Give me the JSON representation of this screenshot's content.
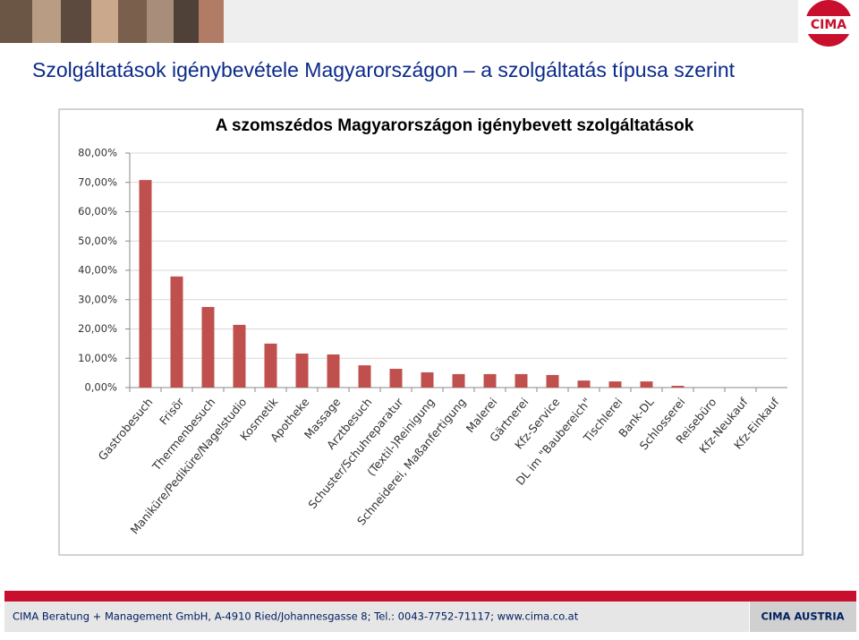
{
  "logo": "CIMA",
  "slide_title": "Szolgáltatások igénybevétele Magyarországon – a szolgáltatás típusa szerint",
  "footer": "CIMA Beratung + Management GmbH, A-4910 Ried/Johannesgasse 8; Tel.: 0043-7752-71117; www.cima.co.at",
  "footer_brand": "CIMA AUSTRIA",
  "chart_data": {
    "type": "bar",
    "title": "A szomszédos Magyarországon igénybevett szolgáltatások",
    "categories": [
      "Gastrobesuch",
      "Frisör",
      "Thermenbesuch",
      "Maniküre/Pediküre/Nagelstudio",
      "Kosmetik",
      "Apotheke",
      "Massage",
      "Arztbesuch",
      "Schuster/Schuhreparatur",
      "(Textil-)Reinigung",
      "Schneiderei, Maßanfertigung",
      "Malerei",
      "Gärtnerei",
      "Kfz-Service",
      "DL im \"Baubereich\"",
      "Tischlerei",
      "Bank-DL",
      "Schlosserei",
      "Reisebüro",
      "Kfz-Neukauf",
      "Kfz-Einkauf"
    ],
    "values": [
      70.8,
      37.9,
      27.5,
      21.4,
      15.0,
      11.6,
      11.3,
      7.6,
      6.4,
      5.2,
      4.6,
      4.6,
      4.6,
      4.3,
      2.4,
      2.1,
      2.1,
      0.6,
      0,
      0,
      0
    ],
    "color": "#c0504d",
    "ylim": [
      0,
      80
    ],
    "yticks": [
      {
        "value": 0,
        "label": "0,00%"
      },
      {
        "value": 10,
        "label": "10,00%"
      },
      {
        "value": 20,
        "label": "20,00%"
      },
      {
        "value": 30,
        "label": "30,00%"
      },
      {
        "value": 40,
        "label": "40,00%"
      },
      {
        "value": 50,
        "label": "50,00%"
      },
      {
        "value": 60,
        "label": "60,00%"
      },
      {
        "value": 70,
        "label": "70,00%"
      },
      {
        "value": 80,
        "label": "80,00%"
      }
    ],
    "grid": true
  }
}
